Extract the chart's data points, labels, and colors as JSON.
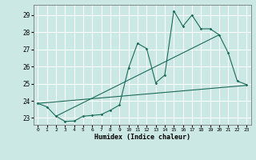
{
  "title": "",
  "xlabel": "Humidex (Indice chaleur)",
  "ylabel": "",
  "bg_color": "#cce8e4",
  "grid_color": "#ffffff",
  "line_color": "#1a6b5a",
  "xlim": [
    -0.5,
    23.5
  ],
  "ylim": [
    22.6,
    29.6
  ],
  "yticks": [
    23,
    24,
    25,
    26,
    27,
    28,
    29
  ],
  "xticks": [
    0,
    1,
    2,
    3,
    4,
    5,
    6,
    7,
    8,
    9,
    10,
    11,
    12,
    13,
    14,
    15,
    16,
    17,
    18,
    19,
    20,
    21,
    22,
    23
  ],
  "line1_x": [
    0,
    1,
    2,
    3,
    4,
    5,
    6,
    7,
    8,
    9,
    10,
    11,
    12,
    13,
    14,
    15,
    16,
    17,
    18,
    19,
    20,
    21,
    22,
    23
  ],
  "line1_y": [
    23.85,
    23.65,
    23.1,
    22.8,
    22.82,
    23.1,
    23.15,
    23.2,
    23.45,
    23.75,
    25.9,
    27.35,
    27.05,
    25.05,
    25.5,
    29.25,
    28.35,
    29.0,
    28.2,
    28.2,
    27.85,
    26.8,
    25.15,
    24.95
  ],
  "line2_x": [
    0,
    23
  ],
  "line2_y": [
    23.85,
    24.9
  ],
  "line3_x": [
    2,
    20
  ],
  "line3_y": [
    23.1,
    27.85
  ]
}
